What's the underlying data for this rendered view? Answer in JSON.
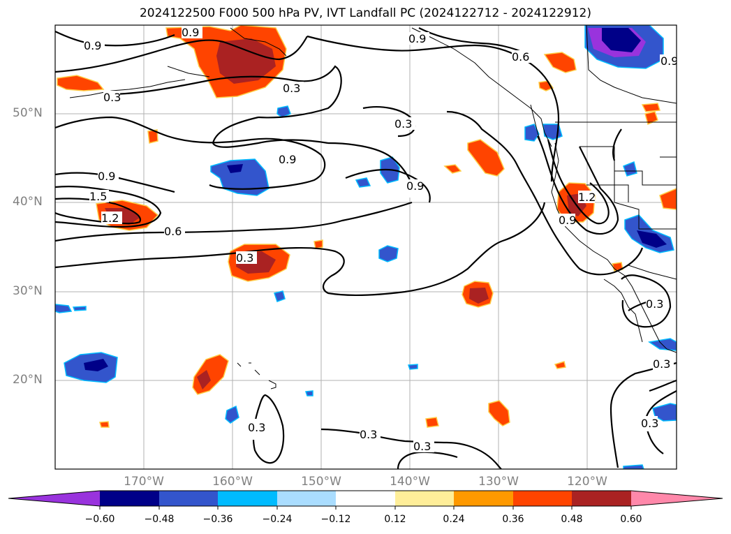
{
  "title": "2024122500 F000 500 hPa PV, IVT Landfall PC (2024122712 - 2024122912)",
  "lat_labels": [
    "50°N",
    "40°N",
    "30°N",
    "20°N"
  ],
  "lon_labels": [
    "170°W",
    "160°W",
    "150°W",
    "140°W",
    "130°W",
    "120°W"
  ],
  "colorbar": {
    "ticks": [
      "−0.60",
      "−0.48",
      "−0.36",
      "−0.24",
      "−0.12",
      "0.12",
      "0.24",
      "0.36",
      "0.48",
      "0.60"
    ],
    "colors": {
      "under": "#9933dd",
      "n060": "#000088",
      "n048": "#3355cc",
      "n036": "#00bbff",
      "n024": "#aaddff",
      "neutral": "#ffffff",
      "p012": "#ffee99",
      "p024": "#ff9900",
      "p036": "#ff4400",
      "p048": "#aa2222",
      "over": "#ff88aa"
    }
  },
  "contour_labels": {
    "c1": "0.9",
    "c2": "0.9",
    "c3": "0.9",
    "c4": "0.6",
    "c5": "0.9",
    "c6": "0.3",
    "c7": "0.3",
    "c8": "0.9",
    "c9": "0.9",
    "c10": "1.5",
    "c11": "1.2",
    "c12": "0.6",
    "c13": "0.9",
    "c14": "0.3",
    "c15": "1.2",
    "c16": "0.9",
    "c17": "0.3",
    "c18": "0.3",
    "c19": "0.3",
    "c20": "0.3",
    "c21": "0.3",
    "c22": "0.3",
    "c23": "0.3"
  }
}
